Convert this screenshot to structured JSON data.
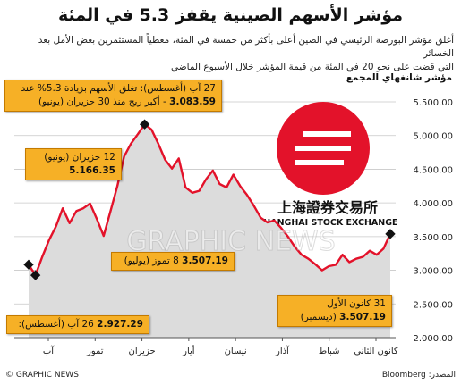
{
  "title": "مؤشر الأسهم الصينية يقفز 5.3 في المئة",
  "subtitle_line1": "أغلق مؤشر البورصة الرئيسي في الصين أعلى بأكثر من خمسة في المئة، معطياً المستثمرين بعض الأمل بعد الخسائر",
  "subtitle_line2": "التي قضت على نحو 20 في المئة من قيمة المؤشر خلال الأسبوع الماضي",
  "index_label": "مؤشر شانغهاي المجمع",
  "logo_text": "上海證券交易所",
  "logo_caption": "SHANGHAI STOCK EXCHANGE",
  "watermark": "GRAPHIC NEWS",
  "source": "المصدر: Bloomberg",
  "credit": "© GRAPHIC NEWS",
  "colors": {
    "line": "#e3122a",
    "area": "#dcdcdc",
    "box": "#f6b026",
    "logo": "#e3122a"
  },
  "annotations": {
    "aug27": {
      "line1": "27 آب (أغسطس): تغلق الأسهم بزيادة 5.3% عند",
      "value": "3.083.59",
      "line2": "- أكبر ربح منذ 30 حزيران (يونيو)"
    },
    "jun12": {
      "date": "12 حزيران (يونيو)",
      "value": "5.166.35"
    },
    "jul8": {
      "date": "8 تموز (يوليو)",
      "value": "3.507.19"
    },
    "dec31": {
      "date": "31 كانون الأول",
      "value": "3.507.19",
      "month": "(ديسمبر)"
    },
    "aug26": {
      "date": "26 آب (أغسطس):",
      "value": "2.927.29"
    }
  },
  "chart_data": {
    "type": "area",
    "ylabel": "مؤشر شانغهاي المجمع",
    "ylim": [
      2000,
      5500
    ],
    "yticks": [
      "2.000.00",
      "2.500.00",
      "3.000.00",
      "3.500.00",
      "4.000.00",
      "4.500.00",
      "5.000.00",
      "5.500.00"
    ],
    "ytick_values": [
      2000,
      2500,
      3000,
      3500,
      4000,
      4500,
      5000,
      5500
    ],
    "x_labels": [
      "كانون الثاني",
      "شباط",
      "آذار",
      "نيسان",
      "أيار",
      "حزيران",
      "تموز",
      "آب"
    ],
    "series": [
      {
        "values": [
          3540,
          3320,
          3230,
          3290,
          3200,
          3170,
          3120,
          3230,
          3080,
          3060,
          3000,
          3090,
          3170,
          3230,
          3350,
          3500,
          3630,
          3740,
          3710,
          3780,
          3960,
          4120,
          4250,
          4420,
          4230,
          4280,
          4480,
          4350,
          4180,
          4150,
          4230,
          4660,
          4510,
          4640,
          4880,
          5090,
          5166,
          5020,
          4880,
          4690,
          4250,
          3880,
          3510,
          3760,
          3990,
          3920,
          3880,
          3700,
          3920,
          3650,
          3450,
          3200,
          2927,
          3084
        ]
      }
    ],
    "grid": true
  }
}
